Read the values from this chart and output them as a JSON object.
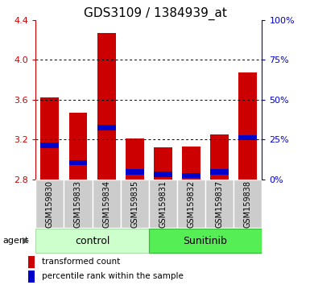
{
  "title": "GDS3109 / 1384939_at",
  "samples": [
    "GSM159830",
    "GSM159833",
    "GSM159834",
    "GSM159835",
    "GSM159831",
    "GSM159832",
    "GSM159837",
    "GSM159838"
  ],
  "transformed_count": [
    3.62,
    3.47,
    4.27,
    3.21,
    3.12,
    3.13,
    3.25,
    3.87
  ],
  "percentile_rank": [
    3.14,
    2.97,
    3.32,
    2.88,
    2.85,
    2.84,
    2.88,
    3.22
  ],
  "bar_base": 2.8,
  "ylim": [
    2.8,
    4.4
  ],
  "yticks": [
    2.8,
    3.2,
    3.6,
    4.0,
    4.4
  ],
  "y2_ticks_pct": [
    0,
    25,
    50,
    75,
    100
  ],
  "y2_ticks_val": [
    2.8,
    3.2,
    3.6,
    4.0,
    4.4
  ],
  "red_color": "#cc0000",
  "blue_color": "#0000cc",
  "bar_width": 0.65,
  "blue_bar_height": 0.055,
  "control_bg": "#ccffcc",
  "sunitinib_bg": "#55ee55",
  "sample_bg": "#cccccc",
  "title_fontsize": 11,
  "tick_fontsize": 8,
  "label_fontsize": 7,
  "legend_fontsize": 7.5,
  "group_label_fontsize": 9,
  "agent_fontsize": 8,
  "grid_yticks": [
    3.2,
    3.6,
    4.0
  ],
  "n_control": 4,
  "n_sunitinib": 4
}
